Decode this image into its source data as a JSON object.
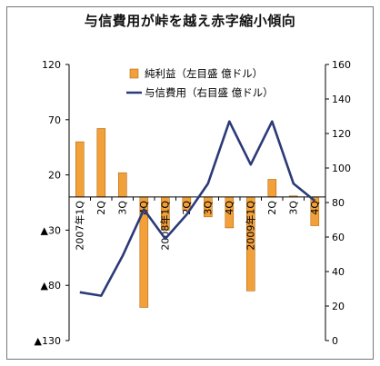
{
  "chart_data": {
    "type": "bar+line",
    "title": "与信費用が峠を越え赤字縮小傾向",
    "categories": [
      "2007年1Q",
      "2Q",
      "3Q",
      "4Q",
      "2008年1Q",
      "2Q",
      "3Q",
      "4Q",
      "2009年1Q",
      "2Q",
      "3Q",
      "4Q"
    ],
    "left_axis": {
      "ylim": [
        -130,
        120
      ],
      "ticks": [
        120,
        70,
        20,
        -30,
        -80,
        -130
      ],
      "tick_labels": [
        "120",
        "70",
        "20",
        "▲30",
        "▲80",
        "▲130"
      ]
    },
    "right_axis": {
      "ylim": [
        0,
        160
      ],
      "ticks": [
        0,
        20,
        40,
        60,
        80,
        100,
        120,
        140,
        160
      ],
      "tick_labels": [
        "0",
        "20",
        "40",
        "60",
        "80",
        "100",
        "120",
        "140",
        "160"
      ]
    },
    "series": [
      {
        "name": "純利益（左目盛 億ドル）",
        "type": "bar",
        "axis": "left",
        "color": "#f2a13a",
        "values": [
          50,
          62,
          22,
          -100,
          -30,
          -12,
          -18,
          -28,
          -85,
          16,
          1,
          -26
        ]
      },
      {
        "name": "与信費用（右目盛 億ドル）",
        "type": "line",
        "axis": "right",
        "color": "#2b3a78",
        "values": [
          28,
          26,
          49,
          76,
          59,
          73,
          91,
          127,
          102,
          127,
          91,
          81
        ]
      }
    ]
  }
}
